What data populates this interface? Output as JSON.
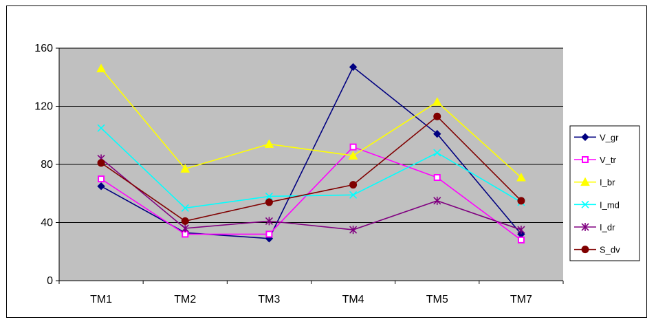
{
  "chart_data": {
    "type": "line",
    "categories": [
      "TM1",
      "TM2",
      "TM3",
      "TM4",
      "TM5",
      "TM7"
    ],
    "ylim": [
      0,
      160
    ],
    "yticks": [
      0,
      40,
      80,
      120,
      160
    ],
    "grid": true,
    "plot_background": "#c0c0c0",
    "legend_position": "right",
    "series": [
      {
        "name": "V_gr",
        "values": [
          65,
          33,
          29,
          147,
          101,
          32
        ],
        "color": "#000080",
        "marker": "diamond"
      },
      {
        "name": "V_tr",
        "values": [
          70,
          32,
          32,
          92,
          71,
          28
        ],
        "color": "#ff00ff",
        "marker": "square"
      },
      {
        "name": "I_br",
        "values": [
          146,
          77,
          94,
          86,
          123,
          71
        ],
        "color": "#ffff00",
        "marker": "triangle"
      },
      {
        "name": "I_md",
        "values": [
          105,
          50,
          58,
          59,
          88,
          54
        ],
        "color": "#00ffff",
        "marker": "x"
      },
      {
        "name": "I_dr",
        "values": [
          84,
          36,
          41,
          35,
          55,
          35
        ],
        "color": "#800080",
        "marker": "star"
      },
      {
        "name": "S_dv",
        "values": [
          81,
          41,
          54,
          66,
          113,
          55
        ],
        "color": "#800000",
        "marker": "circle"
      }
    ]
  }
}
